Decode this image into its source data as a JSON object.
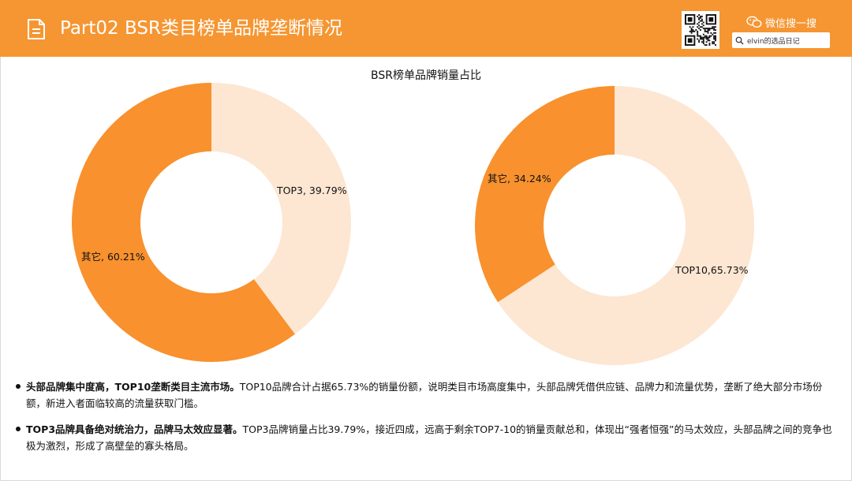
{
  "header": {
    "title": "Part02 BSR类目榜单品牌垄断情况",
    "wechat_label": "微信搜一搜",
    "search_text": "elvin的选品日记",
    "doc_icon": "document-icon",
    "qr_icon": "qr-code",
    "wechat_icon": "wechat-icon",
    "search_icon": "magnifier-icon"
  },
  "colors": {
    "header_bg": "#f59632",
    "dark_slice": "#f8912e",
    "light_slice": "#fde6d2"
  },
  "chart_data": [
    {
      "type": "pie",
      "style": "donut",
      "title": "BSR榜单品牌销量占比",
      "slices": [
        {
          "label": "TOP3, 39.79%",
          "name": "TOP3",
          "value": 39.79,
          "color": "#fde6d2"
        },
        {
          "label": "其它, 60.21%",
          "name": "其它",
          "value": 60.21,
          "color": "#f8912e"
        }
      ]
    },
    {
      "type": "pie",
      "style": "donut",
      "slices": [
        {
          "label": "TOP10,65.73%",
          "name": "TOP10",
          "value": 65.73,
          "color": "#fde6d2"
        },
        {
          "label": "其它, 34.24%",
          "name": "其它",
          "value": 34.24,
          "color": "#f8912e"
        }
      ]
    }
  ],
  "bullets": [
    {
      "bold": "头部品牌集中度高，TOP10垄断类目主流市场。",
      "text": "TOP10品牌合计占据65.73%的销量份额，说明类目市场高度集中，头部品牌凭借供应链、品牌力和流量优势，垄断了绝大部分市场份额，新进入者面临较高的流量获取门槛。"
    },
    {
      "bold": "TOP3品牌具备绝对统治力，品牌马太效应显著。",
      "text": "TOP3品牌销量占比39.79%，接近四成，远高于剩余TOP7-10的销量贡献总和，体现出“强者恒强”的马太效应，头部品牌之间的竞争也极为激烈，形成了高壁垒的寡头格局。"
    }
  ]
}
